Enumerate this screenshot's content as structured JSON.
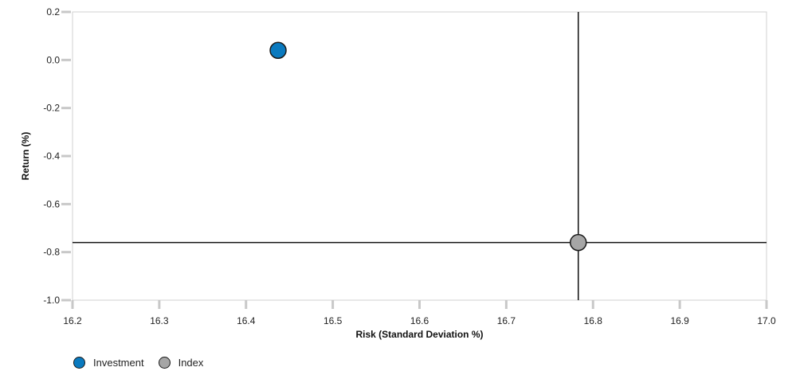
{
  "chart_data": {
    "type": "scatter",
    "xlabel": "Risk (Standard Deviation %)",
    "ylabel": "Return (%)",
    "xlim": [
      16.2,
      17.0
    ],
    "ylim": [
      -1.0,
      0.2
    ],
    "x_ticks": [
      "16.2",
      "16.3",
      "16.4",
      "16.5",
      "16.6",
      "16.7",
      "16.8",
      "16.9",
      "17.0"
    ],
    "y_ticks": [
      "0.2",
      "0.0",
      "-0.2",
      "-0.4",
      "-0.6",
      "-0.8",
      "-1.0"
    ],
    "series": [
      {
        "name": "Investment",
        "color": "#0a7abf",
        "x": 16.437,
        "y": 0.04
      },
      {
        "name": "Index",
        "color": "#a6a6a6",
        "x": 16.783,
        "y": -0.76
      }
    ],
    "crosshair": {
      "x": 16.783,
      "y": -0.76
    },
    "legend_position": "bottom-left",
    "grid": false
  }
}
